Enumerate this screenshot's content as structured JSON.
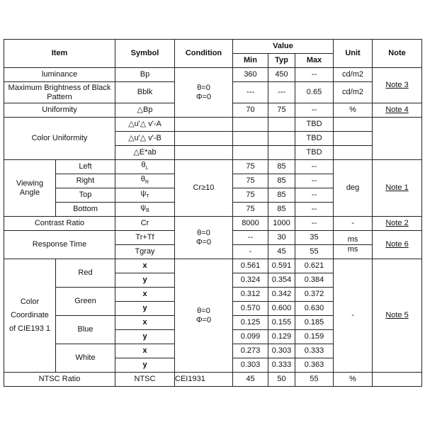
{
  "header": {
    "item": "Item",
    "symbol": "Symbol",
    "condition": "Condition",
    "value": "Value",
    "min": "Min",
    "typ": "Typ",
    "max": "Max",
    "unit": "Unit",
    "note": "Note"
  },
  "cond": {
    "theta": "θ=0",
    "phi": "Φ=0",
    "cr": "Cr≥10",
    "cei": "CEI1931"
  },
  "lum": {
    "item": "luminance",
    "symbol": "Bp",
    "min": "360",
    "typ": "450",
    "max": "--",
    "unit": "cd/m2"
  },
  "black": {
    "item": "Maximum Brightness of Black Pattern",
    "symbol": "Bblk",
    "min": "---",
    "typ": "---",
    "max": "0.65",
    "unit": "cd/m2"
  },
  "note3": "Note 3",
  "unif": {
    "item": "Uniformity",
    "symbol": "△Bp",
    "min": "70",
    "typ": "75",
    "max": "--",
    "unit": "%",
    "note": "Note 4"
  },
  "color_unif": {
    "item": "Color Uniformity",
    "rows": [
      {
        "symbol": "△u'△ v'-A",
        "max": "TBD"
      },
      {
        "symbol": "△u'△ v'-B",
        "max": "TBD"
      },
      {
        "symbol": "△E*ab",
        "max": "TBD"
      }
    ]
  },
  "view": {
    "item": "Viewing Angle",
    "unit": "deg",
    "note": "Note 1",
    "rows": [
      {
        "label": "Left",
        "sym": "θ",
        "sub": "L",
        "min": "75",
        "typ": "85",
        "max": "--"
      },
      {
        "label": "Right",
        "sym": "θ",
        "sub": "R",
        "min": "75",
        "typ": "85",
        "max": "--"
      },
      {
        "label": "Top",
        "sym": "ψ",
        "sub": "T",
        "min": "75",
        "typ": "85",
        "max": "--"
      },
      {
        "label": "Bottom",
        "sym": "ψ",
        "sub": "B",
        "min": "75",
        "typ": "85",
        "max": "--"
      }
    ]
  },
  "cr": {
    "item": "Contrast Ratio",
    "symbol": "Cr",
    "min": "8000",
    "typ": "1000",
    "max": "--",
    "unit": "-",
    "note": "Note 2"
  },
  "resp": {
    "item": "Response Time",
    "note": "Note 6",
    "rows": [
      {
        "symbol": "Tr+Tf",
        "min": "--",
        "typ": "30",
        "max": "35",
        "unit": "ms"
      },
      {
        "symbol": "Tgray",
        "min": "-",
        "typ": "45",
        "max": "55",
        "unit": "ms"
      }
    ]
  },
  "cie": {
    "item": "Color Coordinate of CIE193 1",
    "unit": "-",
    "note": "Note 5",
    "colors": [
      {
        "label": "Red",
        "x": [
          "0.561",
          "0.591",
          "0.621"
        ],
        "y": [
          "0.324",
          "0.354",
          "0.384"
        ]
      },
      {
        "label": "Green",
        "x": [
          "0.312",
          "0.342",
          "0.372"
        ],
        "y": [
          "0.570",
          "0.600",
          "0.630"
        ]
      },
      {
        "label": "Blue",
        "x": [
          "0.125",
          "0.155",
          "0.185"
        ],
        "y": [
          "0.099",
          "0.129",
          "0.159"
        ]
      },
      {
        "label": "White",
        "x": [
          "0.273",
          "0.303",
          "0.333"
        ],
        "y": [
          "0.303",
          "0.333",
          "0.363"
        ]
      }
    ],
    "xs": "x",
    "ys": "y"
  },
  "ntsc": {
    "item": "NTSC Ratio",
    "symbol": "NTSC",
    "min": "45",
    "typ": "50",
    "max": "55",
    "unit": "%"
  }
}
